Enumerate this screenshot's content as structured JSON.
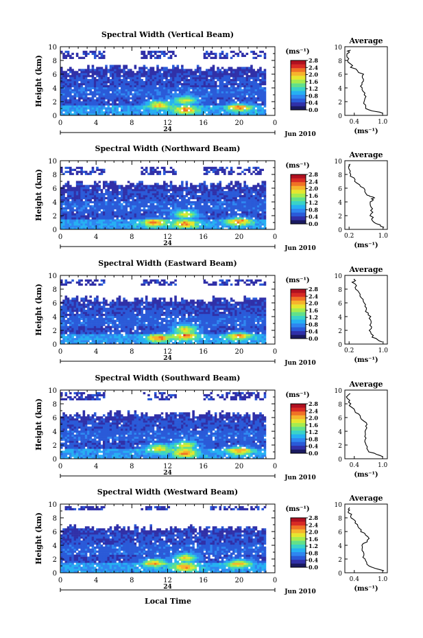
{
  "common": {
    "ylabel": "Height (km)",
    "xlabel": "Local Time",
    "unit_label": "(ms⁻¹)",
    "avg_title": "Average",
    "avg_xlabel": "(ms⁻¹)",
    "date_label": "Jun 2010",
    "day_label": "24"
  },
  "colorbar": {
    "ticks": [
      "0.0",
      "0.4",
      "0.8",
      "1.2",
      "1.6",
      "2.0",
      "2.4",
      "2.8"
    ],
    "colors": [
      "#1a1a60",
      "#3030a8",
      "#2a5ad8",
      "#2f86f0",
      "#26b0f2",
      "#3ad2c8",
      "#62e08a",
      "#a6ec4e",
      "#e6e62e",
      "#f6b42c",
      "#f07224",
      "#d82a24",
      "#b01020"
    ]
  },
  "chart_data": [
    {
      "type": "heatmap",
      "title": "Spectral Width (Vertical Beam)",
      "x_range": [
        0,
        24
      ],
      "x_ticks": [
        "0",
        "4",
        "8",
        "12",
        "16",
        "20",
        "0"
      ],
      "y_range": [
        0,
        10
      ],
      "y_ticks": [
        "0",
        "2",
        "4",
        "6",
        "8",
        "10"
      ],
      "value_range": [
        0,
        2.8
      ],
      "average_profile": {
        "x_ticks": [
          "0.4",
          "1.0"
        ],
        "x_range": [
          0.2,
          1.1
        ],
        "height_km": [
          0.3,
          1,
          2,
          3,
          4,
          5,
          6,
          7,
          8,
          9,
          9.5
        ],
        "value": [
          1.0,
          0.62,
          0.6,
          0.62,
          0.55,
          0.6,
          0.58,
          0.35,
          0.28,
          0.25,
          0.3
        ]
      }
    },
    {
      "type": "heatmap",
      "title": "Spectral Width (Northward Beam)",
      "x_range": [
        0,
        24
      ],
      "x_ticks": [
        "0",
        "4",
        "8",
        "12",
        "16",
        "20",
        "0"
      ],
      "y_range": [
        0,
        10
      ],
      "y_ticks": [
        "0",
        "2",
        "4",
        "6",
        "8",
        "10"
      ],
      "value_range": [
        0,
        2.8
      ],
      "average_profile": {
        "x_ticks": [
          "0.2",
          "1.0"
        ],
        "x_range": [
          0.1,
          1.1
        ],
        "height_km": [
          0.3,
          1,
          2,
          3,
          4,
          4.6,
          5,
          6,
          7,
          8,
          9,
          9.5
        ],
        "value": [
          1.0,
          0.8,
          0.72,
          0.75,
          0.7,
          0.78,
          0.65,
          0.55,
          0.35,
          0.22,
          0.18,
          0.22
        ]
      }
    },
    {
      "type": "heatmap",
      "title": "Spectral Width (Eastward Beam)",
      "x_range": [
        0,
        24
      ],
      "x_ticks": [
        "0",
        "4",
        "8",
        "12",
        "16",
        "20",
        "0"
      ],
      "y_range": [
        0,
        10
      ],
      "y_ticks": [
        "0",
        "2",
        "4",
        "6",
        "8",
        "10"
      ],
      "value_range": [
        0,
        2.8
      ],
      "average_profile": {
        "x_ticks": [
          "0.2",
          "1.0"
        ],
        "x_range": [
          0.1,
          1.1
        ],
        "height_km": [
          0.3,
          1,
          2,
          3,
          4,
          5,
          6,
          7,
          8,
          9,
          9.5
        ],
        "value": [
          1.0,
          0.75,
          0.7,
          0.72,
          0.68,
          0.6,
          0.55,
          0.45,
          0.38,
          0.3,
          0.35
        ]
      }
    },
    {
      "type": "heatmap",
      "title": "Spectral Width (Southward Beam)",
      "x_range": [
        0,
        24
      ],
      "x_ticks": [
        "0",
        "4",
        "8",
        "12",
        "16",
        "20",
        "0"
      ],
      "y_range": [
        0,
        10
      ],
      "y_ticks": [
        "0",
        "2",
        "4",
        "6",
        "8",
        "10"
      ],
      "value_range": [
        0,
        2.8
      ],
      "average_profile": {
        "x_ticks": [
          "0.4",
          "1.0"
        ],
        "x_range": [
          0.2,
          1.1
        ],
        "height_km": [
          0.3,
          1,
          2,
          3,
          4,
          5,
          6,
          7,
          8,
          9,
          9.5
        ],
        "value": [
          1.0,
          0.72,
          0.65,
          0.62,
          0.6,
          0.68,
          0.55,
          0.4,
          0.3,
          0.25,
          0.3
        ]
      }
    },
    {
      "type": "heatmap",
      "title": "Spectral Width (Westward Beam)",
      "x_range": [
        0,
        24
      ],
      "x_ticks": [
        "0",
        "4",
        "8",
        "12",
        "16",
        "20",
        "0"
      ],
      "y_range": [
        0,
        10
      ],
      "y_ticks": [
        "0",
        "2",
        "4",
        "6",
        "8",
        "10"
      ],
      "value_range": [
        0,
        2.8
      ],
      "average_profile": {
        "x_ticks": [
          "0.4",
          "1.0"
        ],
        "x_range": [
          0.2,
          1.1
        ],
        "height_km": [
          0.3,
          1,
          2,
          3,
          4,
          5,
          6,
          7,
          8,
          9,
          9.5
        ],
        "value": [
          1.0,
          0.72,
          0.62,
          0.6,
          0.58,
          0.7,
          0.55,
          0.45,
          0.35,
          0.28,
          0.32
        ]
      }
    }
  ]
}
